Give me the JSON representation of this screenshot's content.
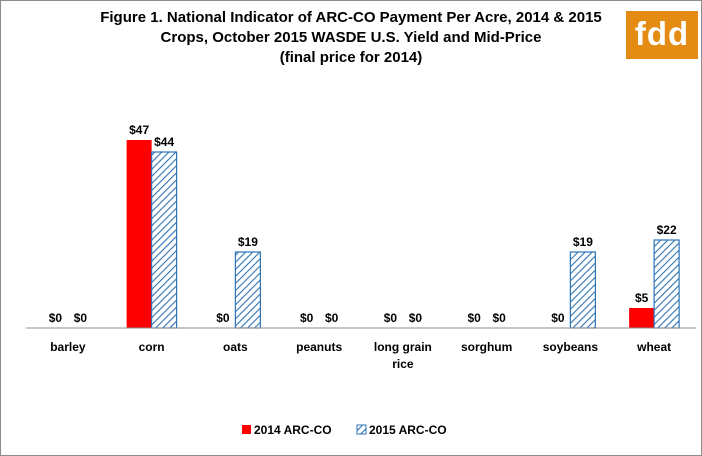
{
  "title": {
    "line1": "Figure 1.  National Indicator of ARC-CO Payment Per Acre, 2014 & 2015",
    "line2": "Crops, October 2015 WASDE U.S. Yield and Mid-Price",
    "line3": "(final price for 2014)"
  },
  "logo": {
    "text": "fdd",
    "color": "#e38b12"
  },
  "chart_data": {
    "type": "bar",
    "categories": [
      [
        "barley"
      ],
      [
        "corn"
      ],
      [
        "oats"
      ],
      [
        "peanuts"
      ],
      [
        "long grain",
        "rice"
      ],
      [
        "sorghum"
      ],
      [
        "soybeans"
      ],
      [
        "wheat"
      ]
    ],
    "series": [
      {
        "name": "2014 ARC-CO",
        "values": [
          0,
          47,
          0,
          0,
          0,
          0,
          0,
          5
        ],
        "labels": [
          "$0",
          "$47",
          "$0",
          "$0",
          "$0",
          "$0",
          "$0",
          "$5"
        ],
        "color": "#ff0000",
        "pattern": "solid"
      },
      {
        "name": "2015 ARC-CO",
        "values": [
          0,
          44,
          19,
          0,
          0,
          0,
          19,
          22
        ],
        "labels": [
          "$0",
          "$44",
          "$19",
          "$0",
          "$0",
          "$0",
          "$19",
          "$22"
        ],
        "color": "#2e75b6",
        "pattern": "diagonal-hatch"
      }
    ],
    "ylim": [
      0,
      50
    ],
    "grid": false,
    "legend": "bottom"
  }
}
